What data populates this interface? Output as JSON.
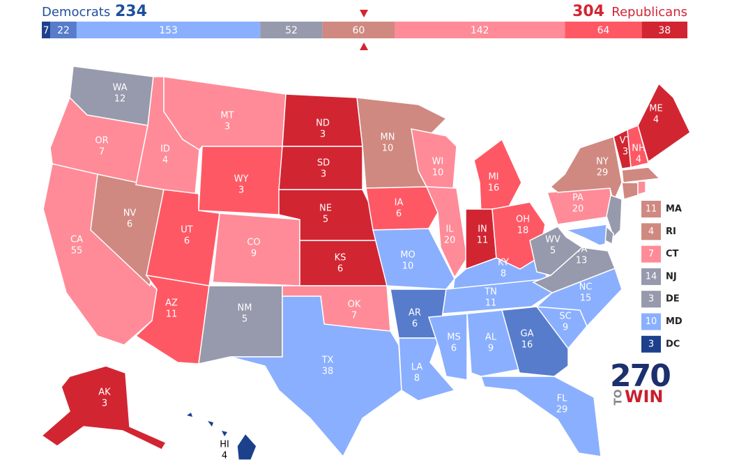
{
  "header": {
    "dem_label": "Democrats",
    "dem_total": 234,
    "rep_total": 304,
    "rep_label": "Republicans"
  },
  "bar": [
    {
      "value": 7,
      "color": "#1c408c"
    },
    {
      "value": 22,
      "color": "#577ccc"
    },
    {
      "value": 153,
      "color": "#8aafff"
    },
    {
      "value": 52,
      "color": "#979aac"
    },
    {
      "value": 60,
      "color": "#cf8980"
    },
    {
      "value": 142,
      "color": "#ff8b98"
    },
    {
      "value": 64,
      "color": "#ff5865"
    },
    {
      "value": 38,
      "color": "#d22532"
    }
  ],
  "states": [
    {
      "abbr": "WA",
      "ev": 12,
      "color": "#979aac"
    },
    {
      "abbr": "OR",
      "ev": 7,
      "color": "#ff8b98"
    },
    {
      "abbr": "CA",
      "ev": 55,
      "color": "#ff8b98"
    },
    {
      "abbr": "NV",
      "ev": 6,
      "color": "#cf8980"
    },
    {
      "abbr": "ID",
      "ev": 4,
      "color": "#ff8b98"
    },
    {
      "abbr": "MT",
      "ev": 3,
      "color": "#ff8b98"
    },
    {
      "abbr": "WY",
      "ev": 3,
      "color": "#ff5865"
    },
    {
      "abbr": "UT",
      "ev": 6,
      "color": "#ff5865"
    },
    {
      "abbr": "AZ",
      "ev": 11,
      "color": "#ff5865"
    },
    {
      "abbr": "CO",
      "ev": 9,
      "color": "#ff8b98"
    },
    {
      "abbr": "NM",
      "ev": 5,
      "color": "#979aac"
    },
    {
      "abbr": "ND",
      "ev": 3,
      "color": "#d22532"
    },
    {
      "abbr": "SD",
      "ev": 3,
      "color": "#d22532"
    },
    {
      "abbr": "NE",
      "ev": 5,
      "color": "#d22532"
    },
    {
      "abbr": "KS",
      "ev": 6,
      "color": "#d22532"
    },
    {
      "abbr": "OK",
      "ev": 7,
      "color": "#ff8b98"
    },
    {
      "abbr": "TX",
      "ev": 38,
      "color": "#8aafff"
    },
    {
      "abbr": "MN",
      "ev": 10,
      "color": "#cf8980"
    },
    {
      "abbr": "IA",
      "ev": 6,
      "color": "#ff5865"
    },
    {
      "abbr": "MO",
      "ev": 10,
      "color": "#8aafff"
    },
    {
      "abbr": "AR",
      "ev": 6,
      "color": "#577ccc"
    },
    {
      "abbr": "LA",
      "ev": 8,
      "color": "#8aafff"
    },
    {
      "abbr": "WI",
      "ev": 10,
      "color": "#ff8b98"
    },
    {
      "abbr": "IL",
      "ev": 20,
      "color": "#ff8b98"
    },
    {
      "abbr": "MI",
      "ev": 16,
      "color": "#ff5865"
    },
    {
      "abbr": "IN",
      "ev": 11,
      "color": "#d22532"
    },
    {
      "abbr": "OH",
      "ev": 18,
      "color": "#ff5865"
    },
    {
      "abbr": "KY",
      "ev": 8,
      "color": "#8aafff"
    },
    {
      "abbr": "TN",
      "ev": 11,
      "color": "#8aafff"
    },
    {
      "abbr": "MS",
      "ev": 6,
      "color": "#8aafff"
    },
    {
      "abbr": "AL",
      "ev": 9,
      "color": "#8aafff"
    },
    {
      "abbr": "GA",
      "ev": 16,
      "color": "#577ccc"
    },
    {
      "abbr": "FL",
      "ev": 29,
      "color": "#8aafff"
    },
    {
      "abbr": "SC",
      "ev": 9,
      "color": "#8aafff"
    },
    {
      "abbr": "NC",
      "ev": 15,
      "color": "#8aafff"
    },
    {
      "abbr": "VA",
      "ev": 13,
      "color": "#979aac"
    },
    {
      "abbr": "WV",
      "ev": 5,
      "color": "#979aac"
    },
    {
      "abbr": "PA",
      "ev": 20,
      "color": "#ff8b98"
    },
    {
      "abbr": "NY",
      "ev": 29,
      "color": "#cf8980"
    },
    {
      "abbr": "VT",
      "ev": 3,
      "color": "#d22532"
    },
    {
      "abbr": "NH",
      "ev": 4,
      "color": "#ff5865"
    },
    {
      "abbr": "ME",
      "ev": 4,
      "color": "#d22532"
    },
    {
      "abbr": "AK",
      "ev": 3,
      "color": "#d22532"
    },
    {
      "abbr": "HI",
      "ev": 4,
      "color": "#1c408c"
    }
  ],
  "small_states": [
    {
      "abbr": "MA",
      "ev": 11,
      "color": "#cf8980"
    },
    {
      "abbr": "RI",
      "ev": 4,
      "color": "#cf8980"
    },
    {
      "abbr": "CT",
      "ev": 7,
      "color": "#ff8b98"
    },
    {
      "abbr": "NJ",
      "ev": 14,
      "color": "#979aac"
    },
    {
      "abbr": "DE",
      "ev": 3,
      "color": "#979aac"
    },
    {
      "abbr": "MD",
      "ev": 10,
      "color": "#8aafff"
    },
    {
      "abbr": "DC",
      "ev": 3,
      "color": "#1c408c"
    }
  ],
  "logo": {
    "number": "270",
    "to": "TO",
    "win": "WIN"
  }
}
